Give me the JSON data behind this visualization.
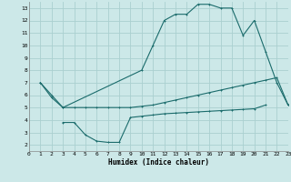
{
  "xlabel": "Humidex (Indice chaleur)",
  "xlim": [
    0,
    23
  ],
  "ylim": [
    1.5,
    13.5
  ],
  "xticks": [
    0,
    1,
    2,
    3,
    4,
    5,
    6,
    7,
    8,
    9,
    10,
    11,
    12,
    13,
    14,
    15,
    16,
    17,
    18,
    19,
    20,
    21,
    22,
    23
  ],
  "yticks": [
    2,
    3,
    4,
    5,
    6,
    7,
    8,
    9,
    10,
    11,
    12,
    13
  ],
  "bg_color": "#cce8e8",
  "grid_color": "#aad0d0",
  "line_color": "#1a6b6b",
  "curve1_x": [
    1,
    2,
    3,
    10,
    11,
    12,
    13,
    14,
    15,
    16,
    17,
    18,
    19,
    20,
    21,
    22,
    23
  ],
  "curve1_y": [
    7.0,
    6.0,
    5.0,
    8.0,
    10.0,
    12.0,
    12.5,
    12.5,
    13.3,
    13.3,
    13.0,
    13.0,
    10.8,
    12.0,
    9.5,
    7.0,
    5.2
  ],
  "curve2_x": [
    1,
    2,
    3,
    4,
    5,
    6,
    7,
    8,
    9,
    10,
    11,
    12,
    13,
    14,
    15,
    16,
    17,
    18,
    19,
    20,
    21,
    22,
    23
  ],
  "curve2_y": [
    7.0,
    5.8,
    5.0,
    5.0,
    5.0,
    5.0,
    5.0,
    5.0,
    5.0,
    5.1,
    5.2,
    5.4,
    5.6,
    5.8,
    6.0,
    6.2,
    6.4,
    6.6,
    6.8,
    7.0,
    7.2,
    7.4,
    5.2
  ],
  "curve3_x": [
    3,
    4,
    5,
    6,
    7,
    8,
    9,
    10,
    11,
    12,
    13,
    14,
    15,
    16,
    17,
    18,
    19,
    20,
    21
  ],
  "curve3_y": [
    3.8,
    3.8,
    2.8,
    2.3,
    2.2,
    2.2,
    4.2,
    4.3,
    4.4,
    4.5,
    4.55,
    4.6,
    4.65,
    4.7,
    4.75,
    4.8,
    4.85,
    4.9,
    5.2
  ]
}
